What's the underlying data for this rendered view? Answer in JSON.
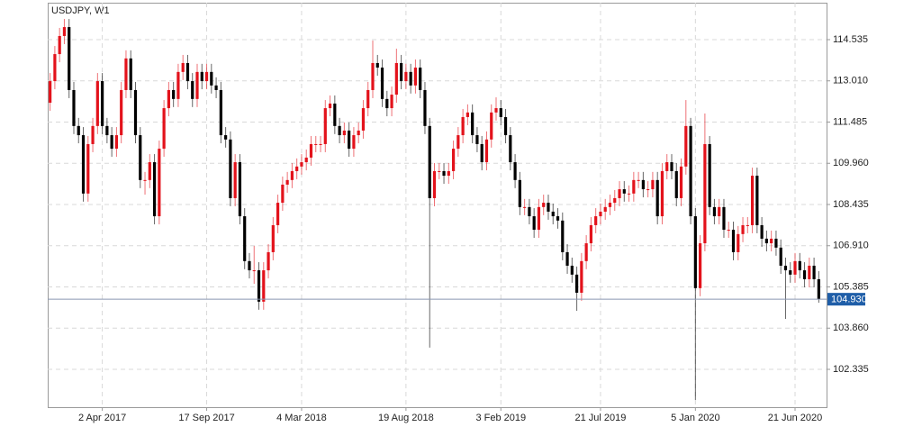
{
  "chart_data": {
    "type": "candlestick",
    "title": "USDJPY, W1",
    "ylim": [
      100.935,
      115.902
    ],
    "yticks": [
      102.335,
      {
        "value": 103.86,
        "label": "103.860"
      },
      105.385,
      {
        "value": 106.91,
        "label": "106.910"
      },
      108.435,
      {
        "value": 109.96,
        "label": "109.960"
      },
      111.485,
      {
        "value": 113.01,
        "label": "113.010"
      },
      114.535
    ],
    "last_price": {
      "value": 104.93,
      "label": "104.930"
    },
    "grid": true,
    "up_color": "#e3121b",
    "down_color": "#000000",
    "last_price_color": "#1f5ea8",
    "categories": [
      null,
      null,
      null,
      null,
      null,
      null,
      null,
      null,
      null,
      null,
      null,
      "2 Apr 2017",
      null,
      null,
      null,
      null,
      null,
      null,
      null,
      null,
      null,
      null,
      null,
      null,
      null,
      null,
      null,
      null,
      null,
      null,
      null,
      null,
      null,
      "17 Sep 2017",
      null,
      null,
      null,
      null,
      null,
      null,
      null,
      null,
      null,
      null,
      null,
      null,
      null,
      null,
      null,
      null,
      null,
      null,
      null,
      "4 Mar 2018",
      null,
      null,
      null,
      null,
      null,
      null,
      null,
      null,
      null,
      null,
      null,
      null,
      null,
      null,
      null,
      null,
      null,
      null,
      null,
      null,
      null,
      "19 Aug 2018",
      null,
      null,
      null,
      null,
      null,
      null,
      null,
      null,
      null,
      null,
      null,
      null,
      null,
      null,
      null,
      null,
      null,
      null,
      null,
      "3 Feb 2019",
      null,
      null,
      null,
      null,
      null,
      null,
      null,
      null,
      null,
      null,
      null,
      null,
      null,
      null,
      null,
      null,
      null,
      null,
      null,
      null,
      "21 Jul 2019",
      null,
      null,
      null,
      null,
      null,
      null,
      null,
      null,
      null,
      null,
      null,
      null,
      null,
      null,
      null,
      null,
      null,
      null,
      null,
      "5 Jan 2020",
      null,
      null,
      null,
      null,
      null,
      null,
      null,
      null,
      null,
      null,
      null,
      null,
      null,
      null,
      null,
      null,
      null,
      null,
      null,
      null,
      "21 Jun 2020",
      null,
      null,
      null,
      null,
      null
    ],
    "ohlc": [
      [
        112.2,
        113.3,
        111.9,
        113
      ],
      [
        113,
        114.3,
        112.7,
        114
      ],
      [
        114,
        114.97,
        113.7,
        114.67
      ],
      [
        114.67,
        115.3,
        114.37,
        115
      ],
      [
        115,
        115.3,
        112.37,
        112.67
      ],
      [
        112.67,
        112.97,
        111.04,
        111.34
      ],
      [
        111.34,
        111.64,
        110.7,
        111
      ],
      [
        111,
        111.3,
        108.54,
        108.84
      ],
      [
        108.84,
        110.97,
        108.54,
        110.67
      ],
      [
        110.67,
        111.64,
        110.37,
        111.34
      ],
      [
        111.34,
        113.3,
        111.04,
        113
      ],
      [
        113,
        113.3,
        111.04,
        111.34
      ],
      [
        111.34,
        111.64,
        110.7,
        111
      ],
      [
        111,
        111.3,
        110.2,
        110.5
      ],
      [
        110.5,
        111.3,
        110.2,
        111
      ],
      [
        111,
        112.97,
        110.7,
        112.67
      ],
      [
        112.67,
        114.14,
        112.37,
        113.84
      ],
      [
        113.84,
        114.14,
        112.37,
        112.67
      ],
      [
        112.67,
        112.97,
        110.7,
        111
      ],
      [
        111,
        111.3,
        109.04,
        109.34
      ],
      [
        109.34,
        109.64,
        108.8,
        109.34
      ],
      [
        109.34,
        110.3,
        109.04,
        110
      ],
      [
        110,
        110.3,
        107.7,
        108
      ],
      [
        108,
        110.8,
        107.7,
        110.5
      ],
      [
        110.5,
        112.3,
        110.2,
        112
      ],
      [
        112,
        112.97,
        111.7,
        112.67
      ],
      [
        112.67,
        112.97,
        112.04,
        112.34
      ],
      [
        112.34,
        113.64,
        112.04,
        113.34
      ],
      [
        113.34,
        113.97,
        113.04,
        113.67
      ],
      [
        113.67,
        113.97,
        112.7,
        113
      ],
      [
        113,
        113.3,
        112.04,
        112.34
      ],
      [
        112.34,
        113.64,
        112.04,
        113.34
      ],
      [
        113.34,
        113.64,
        112.7,
        113
      ],
      [
        113,
        113.64,
        112.7,
        113.34
      ],
      [
        113.34,
        113.64,
        112.54,
        112.84
      ],
      [
        112.84,
        113.14,
        112.37,
        112.67
      ],
      [
        112.67,
        112.97,
        110.7,
        111
      ],
      [
        111,
        111.3,
        110.54,
        110.84
      ],
      [
        110.84,
        111.14,
        108.37,
        108.67
      ],
      [
        108.67,
        110.3,
        108.37,
        110
      ],
      [
        110,
        110.3,
        107.7,
        108
      ],
      [
        108,
        108.3,
        106.04,
        106.34
      ],
      [
        106.34,
        106.64,
        105.7,
        106
      ],
      [
        106,
        106.9,
        105.5,
        106
      ],
      [
        106,
        106.3,
        104.54,
        104.84
      ],
      [
        104.84,
        106.3,
        104.54,
        106
      ],
      [
        106,
        106.97,
        105.7,
        106.67
      ],
      [
        106.67,
        107.97,
        106.37,
        107.67
      ],
      [
        107.67,
        108.8,
        107.37,
        108.5
      ],
      [
        108.5,
        109.47,
        108.2,
        109.17
      ],
      [
        109.17,
        109.64,
        108.87,
        109.34
      ],
      [
        109.34,
        109.97,
        109.04,
        109.67
      ],
      [
        109.67,
        110.14,
        109.37,
        109.84
      ],
      [
        109.84,
        110.3,
        109.54,
        110
      ],
      [
        110,
        110.47,
        109.7,
        110.17
      ],
      [
        110.17,
        110.97,
        109.87,
        110.67
      ],
      [
        110.67,
        110.97,
        110.37,
        110.67
      ],
      [
        110.67,
        110.97,
        110.37,
        110.67
      ],
      [
        110.67,
        112.3,
        110.37,
        112
      ],
      [
        112,
        112.47,
        111.7,
        112.17
      ],
      [
        112.17,
        112.47,
        111.04,
        111.34
      ],
      [
        111.34,
        111.64,
        110.7,
        111
      ],
      [
        111,
        111.47,
        110.7,
        111.17
      ],
      [
        111.17,
        111.47,
        110.2,
        110.5
      ],
      [
        110.5,
        111.3,
        110.2,
        111
      ],
      [
        111,
        111.47,
        110.7,
        111.17
      ],
      [
        111.17,
        112.3,
        110.87,
        112
      ],
      [
        112,
        112.97,
        111.7,
        112.67
      ],
      [
        112.67,
        114.5,
        112.37,
        113.67
      ],
      [
        113.67,
        113.97,
        113.2,
        113.5
      ],
      [
        113.5,
        113.8,
        112.04,
        112.34
      ],
      [
        112.34,
        112.64,
        111.7,
        112
      ],
      [
        112,
        112.8,
        111.7,
        112.5
      ],
      [
        112.5,
        114.2,
        112.2,
        113.67
      ],
      [
        113.67,
        113.97,
        112.7,
        113
      ],
      [
        113,
        113.64,
        112.7,
        113.34
      ],
      [
        113.34,
        113.64,
        112.54,
        112.84
      ],
      [
        112.84,
        113.8,
        112.54,
        113.5
      ],
      [
        113.5,
        113.8,
        112.37,
        112.67
      ],
      [
        112.67,
        112.97,
        111.04,
        111.34
      ],
      [
        111.34,
        111.64,
        103.14,
        108.67
      ],
      [
        108.67,
        109.97,
        108.37,
        109.67
      ],
      [
        109.67,
        109.97,
        109.37,
        109.67
      ],
      [
        109.67,
        109.97,
        109.2,
        109.5
      ],
      [
        109.5,
        109.97,
        109.2,
        109.67
      ],
      [
        109.67,
        110.8,
        109.37,
        110.5
      ],
      [
        110.5,
        111.3,
        110.2,
        111
      ],
      [
        111,
        111.97,
        110.7,
        111.67
      ],
      [
        111.67,
        112.14,
        111.37,
        111.84
      ],
      [
        111.84,
        112.14,
        110.7,
        111
      ],
      [
        111,
        111.3,
        110.37,
        110.67
      ],
      [
        110.67,
        110.97,
        109.7,
        110
      ],
      [
        110,
        111.14,
        109.7,
        110.84
      ],
      [
        110.84,
        112.14,
        110.54,
        111.84
      ],
      [
        111.84,
        112.4,
        111.54,
        112
      ],
      [
        112,
        112.3,
        111.37,
        111.67
      ],
      [
        111.67,
        111.97,
        110.7,
        111
      ],
      [
        111,
        111.3,
        109.7,
        110
      ],
      [
        110,
        110.3,
        109.04,
        109.34
      ],
      [
        109.34,
        109.64,
        108.04,
        108.34
      ],
      [
        108.34,
        108.64,
        108.04,
        108.34
      ],
      [
        108.34,
        108.64,
        107.7,
        108
      ],
      [
        108,
        108.3,
        107.2,
        107.5
      ],
      [
        107.5,
        108.64,
        107.2,
        108.34
      ],
      [
        108.34,
        108.8,
        108.04,
        108.5
      ],
      [
        108.5,
        108.8,
        107.87,
        108.17
      ],
      [
        108.17,
        108.47,
        107.7,
        108
      ],
      [
        108,
        108.3,
        107.54,
        107.84
      ],
      [
        107.84,
        108.14,
        106.37,
        106.67
      ],
      [
        106.67,
        106.97,
        105.87,
        106.17
      ],
      [
        106.17,
        106.47,
        105.54,
        105.84
      ],
      [
        105.84,
        106.14,
        104.5,
        105.17
      ],
      [
        105.17,
        106.64,
        104.87,
        106.34
      ],
      [
        106.34,
        107.3,
        106.04,
        107
      ],
      [
        107,
        107.97,
        106.7,
        107.67
      ],
      [
        107.67,
        108.3,
        107.37,
        108
      ],
      [
        108,
        108.47,
        107.7,
        108.17
      ],
      [
        108.17,
        108.64,
        107.87,
        108.34
      ],
      [
        108.34,
        108.8,
        108.04,
        108.5
      ],
      [
        108.5,
        108.97,
        108.2,
        108.67
      ],
      [
        108.67,
        109.3,
        108.37,
        109
      ],
      [
        109,
        109.3,
        108.54,
        108.84
      ],
      [
        108.84,
        109.14,
        108.54,
        108.84
      ],
      [
        108.84,
        109.64,
        108.54,
        109.34
      ],
      [
        109.34,
        109.64,
        109.04,
        109.34
      ],
      [
        109.34,
        109.64,
        108.7,
        109
      ],
      [
        109,
        109.3,
        108.7,
        109
      ],
      [
        109,
        109.64,
        108.7,
        109.34
      ],
      [
        109.34,
        109.64,
        107.7,
        108
      ],
      [
        108,
        109.97,
        107.7,
        109.67
      ],
      [
        109.67,
        110.3,
        109.37,
        110
      ],
      [
        110,
        110.3,
        109.37,
        109.67
      ],
      [
        109.67,
        109.97,
        108.37,
        108.67
      ],
      [
        108.67,
        110.14,
        108.37,
        109.84
      ],
      [
        109.84,
        112.3,
        109.54,
        111.34
      ],
      [
        111.34,
        111.64,
        107.7,
        108
      ],
      [
        108,
        108.3,
        101.2,
        105.34
      ],
      [
        105.34,
        107.3,
        105.04,
        107
      ],
      [
        107,
        111.8,
        106.7,
        110.67
      ],
      [
        110.67,
        110.97,
        108.04,
        108.34
      ],
      [
        108.34,
        108.64,
        107.7,
        108
      ],
      [
        108,
        108.64,
        107.7,
        108.34
      ],
      [
        108.34,
        108.64,
        107.2,
        107.5
      ],
      [
        107.5,
        107.8,
        107.2,
        107.5
      ],
      [
        107.5,
        107.8,
        106.37,
        106.67
      ],
      [
        106.67,
        107.64,
        106.37,
        107.34
      ],
      [
        107.34,
        107.97,
        107.04,
        107.67
      ],
      [
        107.67,
        107.97,
        107.37,
        107.67
      ],
      [
        107.67,
        109.8,
        107.37,
        109.5
      ],
      [
        109.5,
        109.8,
        107.37,
        107.67
      ],
      [
        107.67,
        107.97,
        106.87,
        107.17
      ],
      [
        107.17,
        107.47,
        106.7,
        107
      ],
      [
        107,
        107.47,
        106.7,
        107.17
      ],
      [
        107.17,
        107.47,
        106.54,
        106.84
      ],
      [
        106.84,
        107.14,
        105.87,
        106.17
      ],
      [
        106.17,
        106.47,
        104.2,
        106
      ],
      [
        106,
        106.3,
        105.54,
        105.84
      ],
      [
        105.84,
        106.64,
        105.54,
        106.34
      ],
      [
        106.34,
        106.64,
        105.7,
        106
      ],
      [
        106,
        106.3,
        105.37,
        105.67
      ],
      [
        105.67,
        106.47,
        105.37,
        106.17
      ],
      [
        106.17,
        106.47,
        105.37,
        105.67
      ],
      [
        105.67,
        105.97,
        104.8,
        104.93
      ]
    ]
  }
}
